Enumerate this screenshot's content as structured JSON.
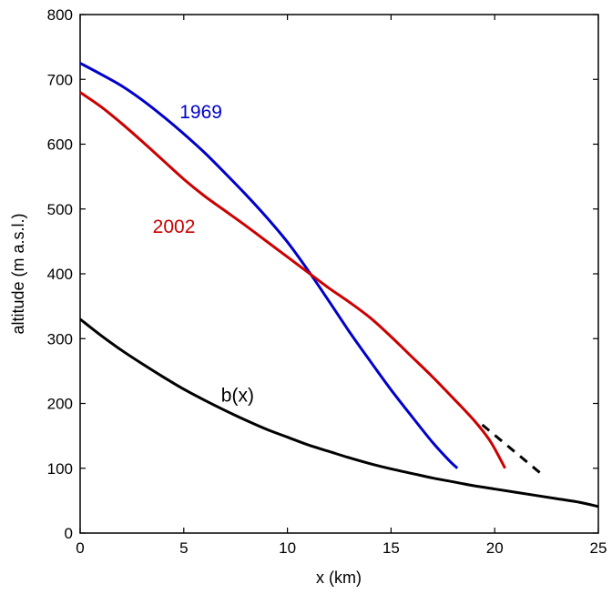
{
  "chart_data": {
    "type": "line",
    "title": "",
    "xlabel": "x (km)",
    "ylabel": "altitude (m a.s.l.)",
    "xlim": [
      0,
      25
    ],
    "ylim": [
      0,
      800
    ],
    "xticks": [
      0,
      5,
      10,
      15,
      20,
      25
    ],
    "yticks": [
      0,
      100,
      200,
      300,
      400,
      500,
      600,
      700,
      800
    ],
    "xtick_labels": [
      "0",
      "5",
      "10",
      "15",
      "20",
      "25"
    ],
    "ytick_labels": [
      "0",
      "100",
      "200",
      "300",
      "400",
      "500",
      "600",
      "700",
      "800"
    ],
    "grid": false,
    "legend": "none (inline curve labels)",
    "series": [
      {
        "name": "1969",
        "color": "#0000cc",
        "line_style": "solid",
        "x": [
          0,
          1,
          2,
          3,
          4,
          5,
          6,
          7,
          8,
          9,
          10,
          11,
          12,
          13,
          14,
          15,
          16,
          17,
          17.8,
          18.2
        ],
        "y": [
          725,
          708,
          690,
          668,
          643,
          616,
          587,
          555,
          522,
          487,
          449,
          405,
          358,
          310,
          265,
          221,
          180,
          140,
          112,
          100
        ]
      },
      {
        "name": "2002",
        "color": "#cc0000",
        "line_style": "solid",
        "x": [
          0,
          1,
          2,
          3,
          4,
          5,
          6,
          7,
          8,
          9,
          10,
          11,
          12,
          13,
          14,
          15,
          16,
          17,
          18,
          19,
          19.8,
          20.5
        ],
        "y": [
          680,
          658,
          632,
          604,
          575,
          546,
          520,
          497,
          474,
          450,
          426,
          402,
          378,
          356,
          332,
          303,
          272,
          241,
          208,
          174,
          141,
          100
        ]
      },
      {
        "name": "b(x)",
        "color": "#000000",
        "line_style": "solid",
        "x": [
          0,
          1,
          2,
          3,
          4,
          5,
          6,
          7,
          8,
          9,
          10,
          11,
          12,
          13,
          14,
          15,
          16,
          17,
          18,
          19,
          20,
          21,
          22,
          23,
          24,
          25
        ],
        "y": [
          330,
          305,
          282,
          261,
          241,
          222,
          205,
          189,
          174,
          160,
          148,
          136,
          126,
          116,
          107,
          99,
          92,
          85,
          79,
          73,
          68,
          63,
          58,
          53,
          48,
          41
        ]
      },
      {
        "name": "",
        "color": "#000000",
        "line_style": "dashed",
        "x": [
          19.4,
          22.3
        ],
        "y": [
          167,
          90
        ]
      }
    ],
    "annotations": [
      {
        "text": "1969",
        "x": 4.8,
        "y": 640,
        "color": "#0000cc"
      },
      {
        "text": "2002",
        "x": 3.5,
        "y": 463,
        "color": "#cc0000"
      },
      {
        "text": "b(x)",
        "x": 6.8,
        "y": 203,
        "color": "#000000"
      }
    ]
  }
}
